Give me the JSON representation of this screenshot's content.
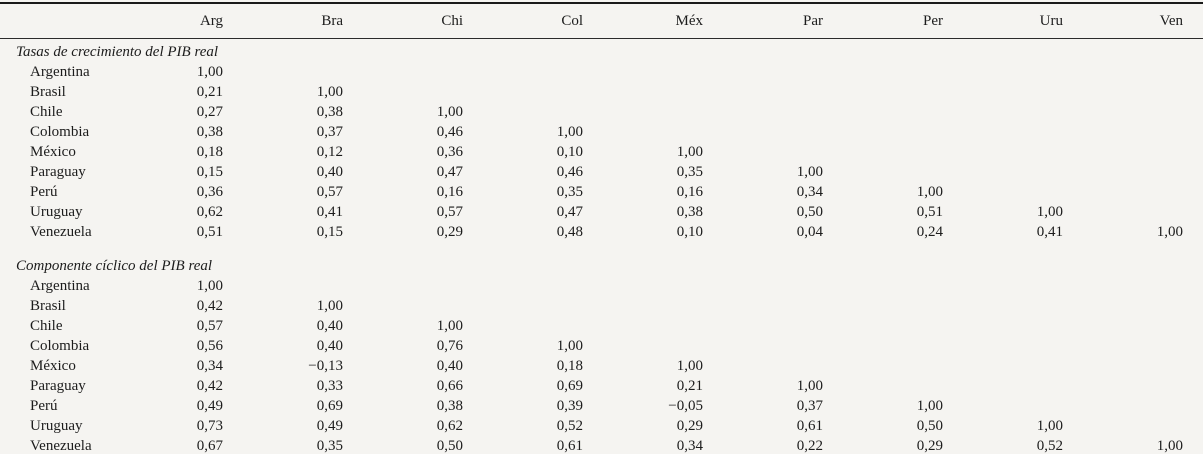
{
  "figure": {
    "columns": [
      "Arg",
      "Bra",
      "Chi",
      "Col",
      "Méx",
      "Par",
      "Per",
      "Uru",
      "Ven"
    ],
    "sections": [
      {
        "title": "Tasas de crecimiento del PIB real",
        "rows": [
          {
            "label": "Argentina",
            "values": [
              "1,00"
            ]
          },
          {
            "label": "Brasil",
            "values": [
              "0,21",
              "1,00"
            ]
          },
          {
            "label": "Chile",
            "values": [
              "0,27",
              "0,38",
              "1,00"
            ]
          },
          {
            "label": "Colombia",
            "values": [
              "0,38",
              "0,37",
              "0,46",
              "1,00"
            ]
          },
          {
            "label": "México",
            "values": [
              "0,18",
              "0,12",
              "0,36",
              "0,10",
              "1,00"
            ]
          },
          {
            "label": "Paraguay",
            "values": [
              "0,15",
              "0,40",
              "0,47",
              "0,46",
              "0,35",
              "1,00"
            ]
          },
          {
            "label": "Perú",
            "values": [
              "0,36",
              "0,57",
              "0,16",
              "0,35",
              "0,16",
              "0,34",
              "1,00"
            ]
          },
          {
            "label": "Uruguay",
            "values": [
              "0,62",
              "0,41",
              "0,57",
              "0,47",
              "0,38",
              "0,50",
              "0,51",
              "1,00"
            ]
          },
          {
            "label": "Venezuela",
            "values": [
              "0,51",
              "0,15",
              "0,29",
              "0,48",
              "0,10",
              "0,04",
              "0,24",
              "0,41",
              "1,00"
            ]
          }
        ]
      },
      {
        "title": "Componente cíclico del PIB real",
        "rows": [
          {
            "label": "Argentina",
            "values": [
              "1,00"
            ]
          },
          {
            "label": "Brasil",
            "values": [
              "0,42",
              "1,00"
            ]
          },
          {
            "label": "Chile",
            "values": [
              "0,57",
              "0,40",
              "1,00"
            ]
          },
          {
            "label": "Colombia",
            "values": [
              "0,56",
              "0,40",
              "0,76",
              "1,00"
            ]
          },
          {
            "label": "México",
            "values": [
              "0,34",
              "−0,13",
              "0,40",
              "0,18",
              "1,00"
            ]
          },
          {
            "label": "Paraguay",
            "values": [
              "0,42",
              "0,33",
              "0,66",
              "0,69",
              "0,21",
              "1,00"
            ]
          },
          {
            "label": "Perú",
            "values": [
              "0,49",
              "0,69",
              "0,38",
              "0,39",
              "−0,05",
              "0,37",
              "1,00"
            ]
          },
          {
            "label": "Uruguay",
            "values": [
              "0,73",
              "0,49",
              "0,62",
              "0,52",
              "0,29",
              "0,61",
              "0,50",
              "1,00"
            ]
          },
          {
            "label": "Venezuela",
            "values": [
              "0,67",
              "0,35",
              "0,50",
              "0,61",
              "0,34",
              "0,22",
              "0,29",
              "0,52",
              "1,00"
            ]
          }
        ]
      }
    ],
    "colors": {
      "background": "#f5f4f1",
      "text": "#1c1c1c",
      "rule": "#1a1a1a"
    }
  }
}
